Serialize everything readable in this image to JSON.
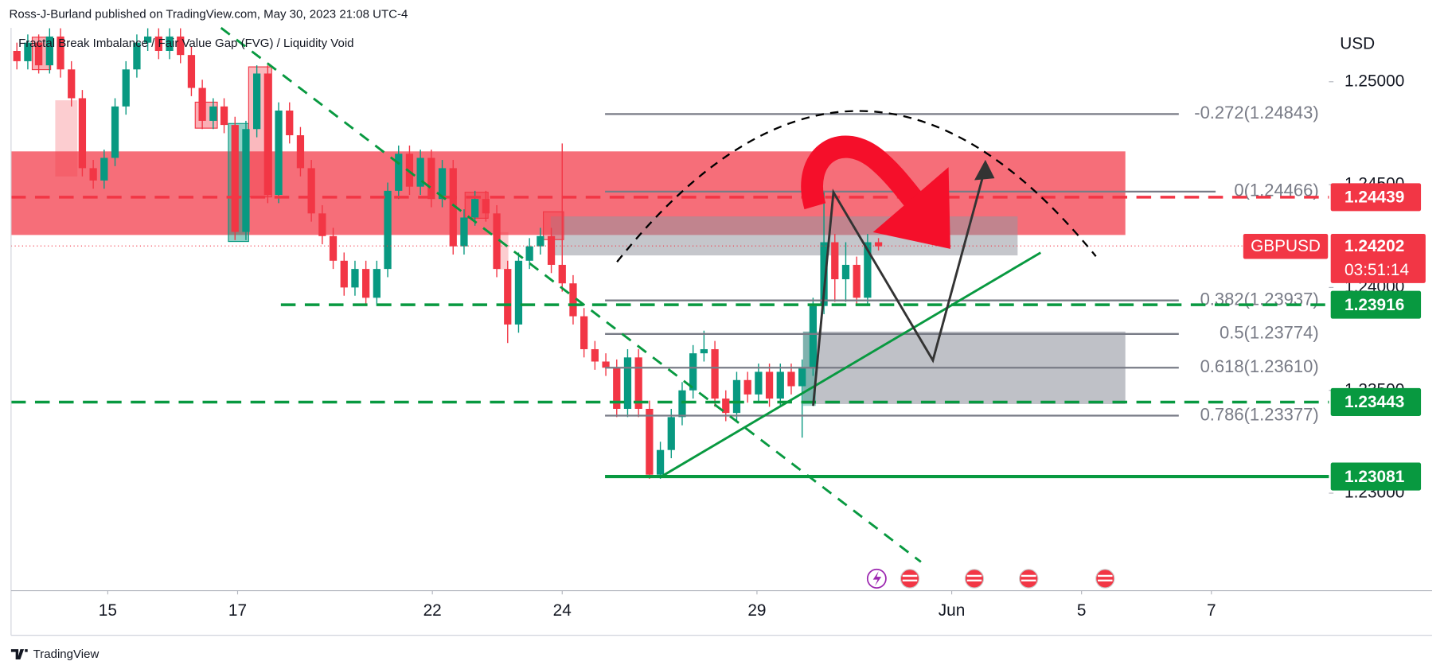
{
  "chart_data": {
    "type": "candlestick",
    "byline": "Ross-J-Burland published on TradingView.com, May 30, 2023 21:08 UTC-4",
    "title": "Fractal Break Imbalance / Fair Value Gap (FVG) / Liquidity Void",
    "currency": "USD",
    "symbol": "GBPUSD",
    "countdown": "03:51:14",
    "last_price": 1.24202,
    "brand": "TradingView",
    "up_color": "#089981",
    "down_color": "#f23645",
    "grid": false,
    "xlim": [
      -1.49,
      18.81
    ],
    "ylim": [
      1.22526,
      1.25262
    ],
    "xticks": [
      {
        "value": 0,
        "label": "15"
      },
      {
        "value": 2,
        "label": "17"
      },
      {
        "value": 5,
        "label": "22"
      },
      {
        "value": 7,
        "label": "24"
      },
      {
        "value": 10,
        "label": "29"
      },
      {
        "value": 13,
        "label": "Jun"
      },
      {
        "value": 15,
        "label": "5"
      },
      {
        "value": 17,
        "label": "7"
      }
    ],
    "yticks": [
      {
        "value": 1.25,
        "label": "1.25000"
      },
      {
        "value": 1.245,
        "label": "1.24500"
      },
      {
        "value": 1.24,
        "label": "1.24000"
      },
      {
        "value": 1.235,
        "label": "1.23500"
      },
      {
        "value": 1.23,
        "label": "1.23000"
      }
    ],
    "levels": [
      {
        "value": 1.24439,
        "color": "#f23645",
        "style": "dashed"
      },
      {
        "value": 1.23916,
        "color": "#089940",
        "style": "dashed"
      },
      {
        "value": 1.23443,
        "color": "#089940",
        "style": "dashed"
      },
      {
        "value": 1.23081,
        "color": "#089940",
        "style": "solid"
      }
    ],
    "fib_levels": [
      {
        "value": 1.24843,
        "label": "-0.272(1.24843)"
      },
      {
        "value": 1.24466,
        "label": "0(1.24466)"
      },
      {
        "value": 1.23937,
        "label": "0.382(1.23937)"
      },
      {
        "value": 1.23774,
        "label": "0.5(1.23774)"
      },
      {
        "value": 1.2361,
        "label": "0.618(1.23610)"
      },
      {
        "value": 1.23377,
        "label": "0.786(1.23377)"
      }
    ],
    "x": [
      -1.4,
      -1.232,
      -1.064,
      -0.896,
      -0.728,
      -0.56,
      -0.392,
      -0.224,
      -0.056,
      0.112,
      0.28,
      0.448,
      0.616,
      0.784,
      0.952,
      1.12,
      1.288,
      1.456,
      1.624,
      1.792,
      1.96,
      2.128,
      2.296,
      2.464,
      2.632,
      2.8,
      2.968,
      3.136,
      3.304,
      3.472,
      3.64,
      3.808,
      3.976,
      4.144,
      4.312,
      4.48,
      4.648,
      4.816,
      4.984,
      5.152,
      5.32,
      5.488,
      5.656,
      5.824,
      5.992,
      6.16,
      6.328,
      6.496,
      6.664,
      6.832,
      7.0,
      7.168,
      7.336,
      7.504,
      7.672,
      7.84,
      8.008,
      8.176,
      8.344,
      8.512,
      8.68,
      8.848,
      9.016,
      9.184,
      9.352,
      9.52,
      9.688,
      9.856,
      10.024,
      10.192,
      10.36,
      10.528,
      10.696,
      10.864,
      11.032,
      11.2,
      11.368,
      11.536,
      11.704,
      11.872
    ],
    "open": [
      1.2515,
      1.251,
      1.2519,
      1.2508,
      1.2522,
      1.2506,
      1.2492,
      1.2458,
      1.2452,
      1.2463,
      1.2488,
      1.2506,
      1.2519,
      1.2522,
      1.2515,
      1.2522,
      1.2513,
      1.2497,
      1.2481,
      1.2488,
      1.2479,
      1.2427,
      1.2477,
      1.2504,
      1.2445,
      1.2486,
      1.2474,
      1.2458,
      1.2436,
      1.2425,
      1.2413,
      1.24,
      1.2409,
      1.2395,
      1.2409,
      1.2447,
      1.2465,
      1.2449,
      1.2463,
      1.2443,
      1.2458,
      1.242,
      1.2434,
      1.2443,
      1.2436,
      1.2409,
      1.2382,
      1.2413,
      1.242,
      1.2425,
      1.2411,
      1.2402,
      1.2386,
      1.237,
      1.2364,
      1.2361,
      1.2341,
      1.2366,
      1.2341,
      1.2309,
      1.2321,
      1.2337,
      1.235,
      1.2368,
      1.237,
      1.2346,
      1.2339,
      1.2355,
      1.2348,
      1.2359,
      1.2346,
      1.2359,
      1.2352,
      1.2361,
      1.2391,
      1.2422,
      1.2404,
      1.2411,
      1.2395,
      1.2422
    ],
    "high": [
      1.2519,
      1.2523,
      1.2523,
      1.2526,
      1.2526,
      1.251,
      1.2496,
      1.2462,
      1.2467,
      1.2492,
      1.251,
      1.2523,
      1.2526,
      1.2526,
      1.2526,
      1.2526,
      1.2517,
      1.2501,
      1.2492,
      1.2492,
      1.2483,
      1.2481,
      1.2508,
      1.2508,
      1.249,
      1.249,
      1.2478,
      1.2462,
      1.244,
      1.2429,
      1.2417,
      1.2413,
      1.2413,
      1.2413,
      1.2451,
      1.2469,
      1.2469,
      1.2467,
      1.2467,
      1.2462,
      1.2462,
      1.2438,
      1.2447,
      1.2447,
      1.244,
      1.2413,
      1.2417,
      1.2424,
      1.2429,
      1.2429,
      1.247,
      1.2406,
      1.239,
      1.2374,
      1.2368,
      1.2365,
      1.237,
      1.237,
      1.2345,
      1.2325,
      1.2341,
      1.2354,
      1.2372,
      1.2379,
      1.2374,
      1.235,
      1.2359,
      1.2359,
      1.2363,
      1.2363,
      1.2363,
      1.2363,
      1.2365,
      1.2395,
      1.2447,
      1.2426,
      1.2422,
      1.2415,
      1.2426,
      1.2424
    ],
    "low": [
      1.2506,
      1.2506,
      1.2504,
      1.2504,
      1.2502,
      1.2488,
      1.2454,
      1.2448,
      1.2448,
      1.2459,
      1.2484,
      1.2502,
      1.2515,
      1.2511,
      1.2511,
      1.2509,
      1.2493,
      1.2477,
      1.2477,
      1.2475,
      1.2423,
      1.2423,
      1.2473,
      1.2441,
      1.2441,
      1.247,
      1.2454,
      1.2432,
      1.2421,
      1.2409,
      1.2396,
      1.2396,
      1.2391,
      1.2391,
      1.2405,
      1.2443,
      1.2445,
      1.2445,
      1.2439,
      1.2439,
      1.2416,
      1.2416,
      1.243,
      1.2432,
      1.2405,
      1.2373,
      1.2378,
      1.2409,
      1.2416,
      1.2407,
      1.2398,
      1.2382,
      1.2366,
      1.236,
      1.2357,
      1.2337,
      1.2337,
      1.2337,
      1.2307,
      1.2307,
      1.2317,
      1.2333,
      1.2346,
      1.2364,
      1.2342,
      1.2335,
      1.2335,
      1.2344,
      1.2344,
      1.2342,
      1.2342,
      1.2348,
      1.2327,
      1.2357,
      1.2387,
      1.2393,
      1.2393,
      1.2391,
      1.2391,
      1.2418
    ],
    "close": [
      1.251,
      1.2519,
      1.2508,
      1.2522,
      1.2506,
      1.2492,
      1.2458,
      1.2452,
      1.2463,
      1.2488,
      1.2506,
      1.2519,
      1.2522,
      1.2515,
      1.2522,
      1.2513,
      1.2497,
      1.2481,
      1.2488,
      1.2479,
      1.2427,
      1.2477,
      1.2504,
      1.2445,
      1.2486,
      1.2474,
      1.2458,
      1.2436,
      1.2425,
      1.2413,
      1.24,
      1.2409,
      1.2395,
      1.2409,
      1.2447,
      1.2465,
      1.2449,
      1.2463,
      1.2443,
      1.2458,
      1.242,
      1.2434,
      1.2443,
      1.2436,
      1.2409,
      1.2382,
      1.2413,
      1.242,
      1.2425,
      1.2411,
      1.2402,
      1.2386,
      1.237,
      1.2364,
      1.2361,
      1.2341,
      1.2366,
      1.2341,
      1.2309,
      1.2321,
      1.2337,
      1.235,
      1.2368,
      1.237,
      1.2346,
      1.2339,
      1.2355,
      1.2348,
      1.2359,
      1.2346,
      1.2359,
      1.2352,
      1.2361,
      1.2391,
      1.2422,
      1.2404,
      1.2411,
      1.2395,
      1.2422,
      1.242
    ]
  }
}
